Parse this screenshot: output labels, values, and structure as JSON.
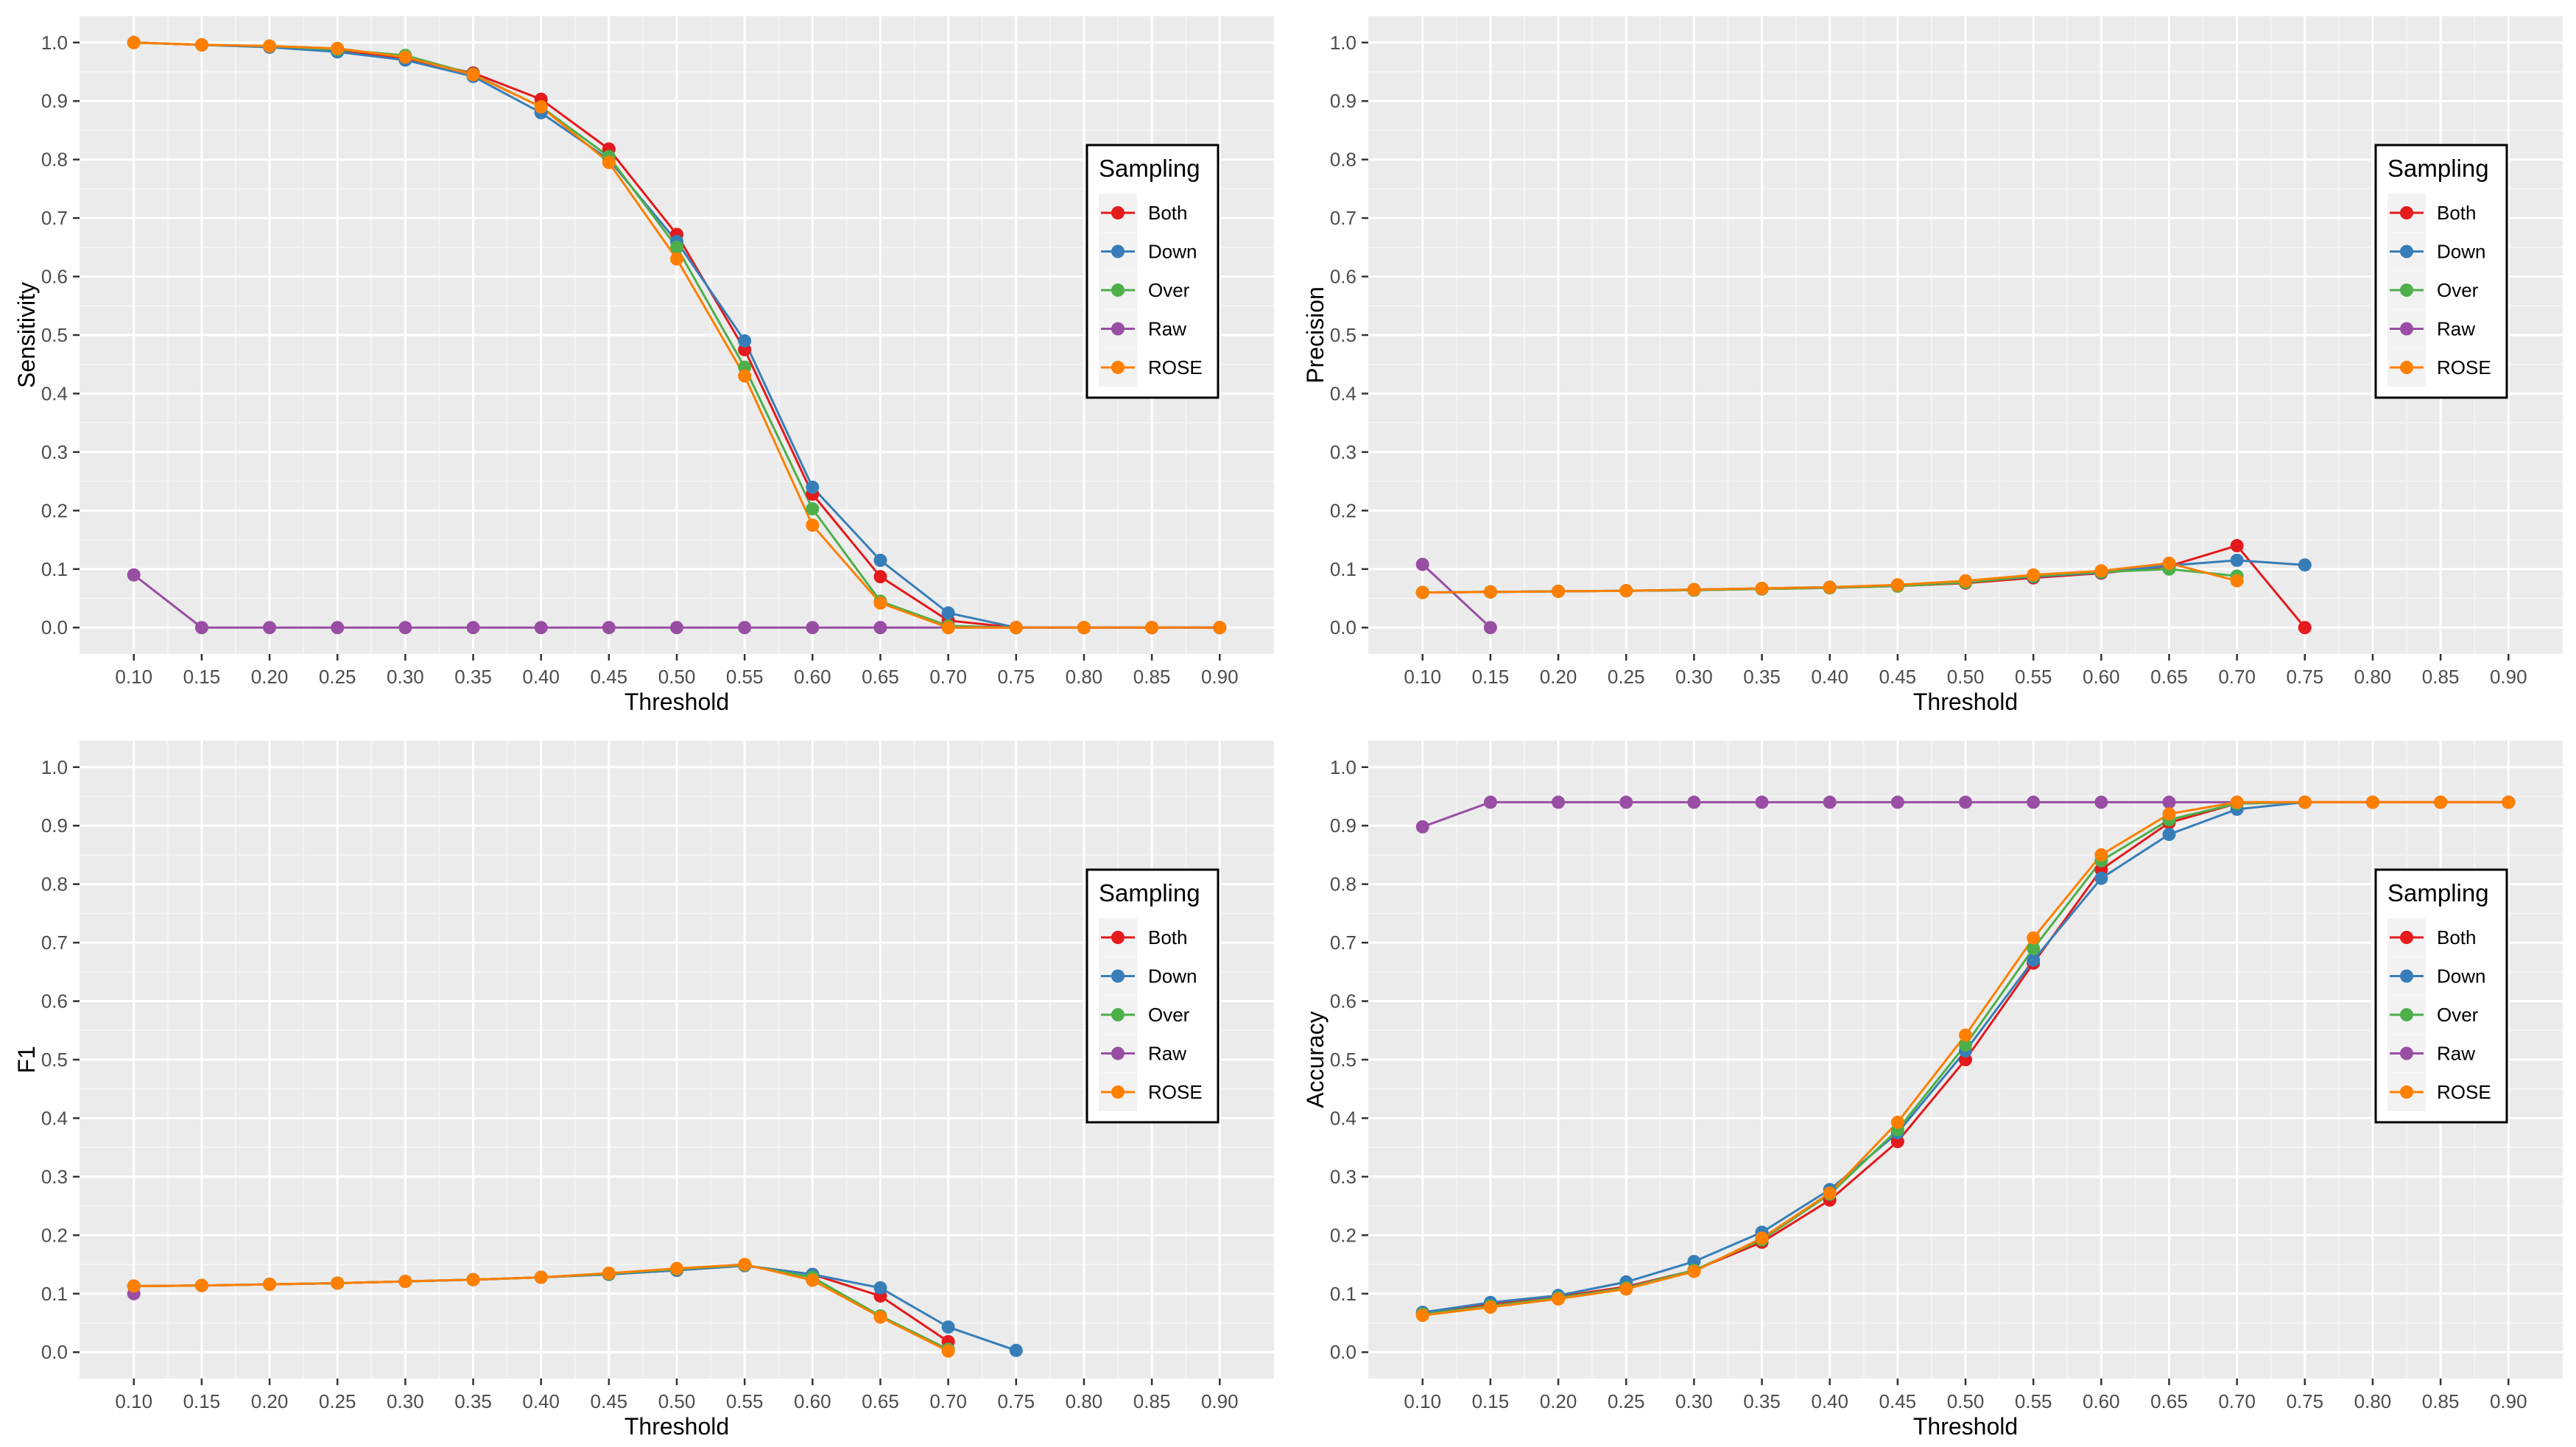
{
  "chart_data": [
    {
      "type": "line",
      "xlabel": "Threshold",
      "ylabel": "Sensitivity",
      "ylim": [
        0,
        1
      ],
      "x_ticks": [
        "0.10",
        "0.15",
        "0.20",
        "0.25",
        "0.30",
        "0.35",
        "0.40",
        "0.45",
        "0.50",
        "0.55",
        "0.60",
        "0.65",
        "0.70",
        "0.75",
        "0.80",
        "0.85",
        "0.90"
      ],
      "y_ticks": [
        "0.0",
        "0.1",
        "0.2",
        "0.3",
        "0.4",
        "0.5",
        "0.6",
        "0.7",
        "0.8",
        "0.9",
        "1.0"
      ],
      "legend": {
        "title": "Sampling",
        "position": "right"
      },
      "series": [
        {
          "name": "Both",
          "color": "#E41A1C",
          "x": [
            0.1,
            0.15,
            0.2,
            0.25,
            0.3,
            0.35,
            0.4,
            0.45,
            0.5,
            0.55,
            0.6,
            0.65,
            0.7,
            0.75,
            0.8,
            0.85,
            0.9
          ],
          "values": [
            1.0,
            0.996,
            0.993,
            0.986,
            0.972,
            0.948,
            0.903,
            0.818,
            0.672,
            0.475,
            0.228,
            0.087,
            0.012,
            0.0,
            0.0,
            0.0,
            0.0
          ]
        },
        {
          "name": "Down",
          "color": "#377EB8",
          "x": [
            0.1,
            0.15,
            0.2,
            0.25,
            0.3,
            0.35,
            0.4,
            0.45,
            0.5,
            0.55,
            0.6,
            0.65,
            0.7,
            0.75
          ],
          "values": [
            1.0,
            0.996,
            0.992,
            0.984,
            0.97,
            0.942,
            0.88,
            0.8,
            0.66,
            0.49,
            0.24,
            0.115,
            0.025,
            0.0
          ]
        },
        {
          "name": "Over",
          "color": "#4DAF4A",
          "x": [
            0.1,
            0.15,
            0.2,
            0.25,
            0.3,
            0.35,
            0.4,
            0.45,
            0.5,
            0.55,
            0.6,
            0.65,
            0.7,
            0.75,
            0.8,
            0.85,
            0.9
          ],
          "values": [
            1.0,
            0.996,
            0.994,
            0.988,
            0.978,
            0.946,
            0.89,
            0.805,
            0.65,
            0.445,
            0.203,
            0.045,
            0.003,
            0.0,
            0.0,
            0.0,
            0.0
          ]
        },
        {
          "name": "Raw",
          "color": "#984EA3",
          "x": [
            0.1,
            0.15,
            0.2,
            0.25,
            0.3,
            0.35,
            0.4,
            0.45,
            0.5,
            0.55,
            0.6,
            0.65,
            0.7,
            0.75,
            0.8,
            0.85,
            0.9
          ],
          "values": [
            0.09,
            0.0,
            0.0,
            0.0,
            0.0,
            0.0,
            0.0,
            0.0,
            0.0,
            0.0,
            0.0,
            0.0,
            0.0,
            0.0,
            0.0,
            0.0,
            0.0
          ]
        },
        {
          "name": "ROSE",
          "color": "#FF7F00",
          "x": [
            0.1,
            0.15,
            0.2,
            0.25,
            0.3,
            0.35,
            0.4,
            0.45,
            0.5,
            0.55,
            0.6,
            0.65,
            0.7,
            0.75,
            0.8,
            0.85,
            0.9
          ],
          "values": [
            1.0,
            0.996,
            0.994,
            0.99,
            0.975,
            0.945,
            0.89,
            0.795,
            0.63,
            0.43,
            0.175,
            0.042,
            0.0,
            0.0,
            0.0,
            0.0,
            0.0
          ]
        }
      ]
    },
    {
      "type": "line",
      "xlabel": "Threshold",
      "ylabel": "Precision",
      "ylim": [
        0,
        1
      ],
      "x_ticks": [
        "0.10",
        "0.15",
        "0.20",
        "0.25",
        "0.30",
        "0.35",
        "0.40",
        "0.45",
        "0.50",
        "0.55",
        "0.60",
        "0.65",
        "0.70",
        "0.75",
        "0.80",
        "0.85",
        "0.90"
      ],
      "y_ticks": [
        "0.0",
        "0.1",
        "0.2",
        "0.3",
        "0.4",
        "0.5",
        "0.6",
        "0.7",
        "0.8",
        "0.9",
        "1.0"
      ],
      "legend": {
        "title": "Sampling",
        "position": "right"
      },
      "series": [
        {
          "name": "Both",
          "color": "#E41A1C",
          "x": [
            0.1,
            0.15,
            0.2,
            0.25,
            0.3,
            0.35,
            0.4,
            0.45,
            0.5,
            0.55,
            0.6,
            0.65,
            0.7,
            0.75
          ],
          "values": [
            0.06,
            0.061,
            0.062,
            0.063,
            0.064,
            0.066,
            0.068,
            0.071,
            0.076,
            0.085,
            0.093,
            0.105,
            0.14,
            0.0
          ]
        },
        {
          "name": "Down",
          "color": "#377EB8",
          "x": [
            0.1,
            0.15,
            0.2,
            0.25,
            0.3,
            0.35,
            0.4,
            0.45,
            0.5,
            0.55,
            0.6,
            0.65,
            0.7,
            0.75
          ],
          "values": [
            0.06,
            0.061,
            0.062,
            0.063,
            0.065,
            0.067,
            0.069,
            0.072,
            0.078,
            0.087,
            0.094,
            0.106,
            0.115,
            0.107
          ]
        },
        {
          "name": "Over",
          "color": "#4DAF4A",
          "x": [
            0.1,
            0.15,
            0.2,
            0.25,
            0.3,
            0.35,
            0.4,
            0.45,
            0.5,
            0.55,
            0.6,
            0.65,
            0.7
          ],
          "values": [
            0.06,
            0.061,
            0.062,
            0.063,
            0.064,
            0.066,
            0.068,
            0.071,
            0.077,
            0.088,
            0.095,
            0.1,
            0.088
          ]
        },
        {
          "name": "Raw",
          "color": "#984EA3",
          "x": [
            0.1,
            0.15
          ],
          "values": [
            0.108,
            0.0
          ]
        },
        {
          "name": "ROSE",
          "color": "#FF7F00",
          "x": [
            0.1,
            0.15,
            0.2,
            0.25,
            0.3,
            0.35,
            0.4,
            0.45,
            0.5,
            0.55,
            0.6,
            0.65,
            0.7
          ],
          "values": [
            0.06,
            0.061,
            0.062,
            0.063,
            0.065,
            0.067,
            0.069,
            0.073,
            0.08,
            0.09,
            0.097,
            0.11,
            0.08
          ]
        }
      ]
    },
    {
      "type": "line",
      "xlabel": "Threshold",
      "ylabel": "F1",
      "ylim": [
        0,
        1
      ],
      "x_ticks": [
        "0.10",
        "0.15",
        "0.20",
        "0.25",
        "0.30",
        "0.35",
        "0.40",
        "0.45",
        "0.50",
        "0.55",
        "0.60",
        "0.65",
        "0.70",
        "0.75",
        "0.80",
        "0.85",
        "0.90"
      ],
      "y_ticks": [
        "0.0",
        "0.1",
        "0.2",
        "0.3",
        "0.4",
        "0.5",
        "0.6",
        "0.7",
        "0.8",
        "0.9",
        "1.0"
      ],
      "legend": {
        "title": "Sampling",
        "position": "right"
      },
      "series": [
        {
          "name": "Both",
          "color": "#E41A1C",
          "x": [
            0.1,
            0.15,
            0.2,
            0.25,
            0.3,
            0.35,
            0.4,
            0.45,
            0.5,
            0.55,
            0.6,
            0.65,
            0.7
          ],
          "values": [
            0.113,
            0.114,
            0.116,
            0.118,
            0.121,
            0.124,
            0.128,
            0.133,
            0.14,
            0.148,
            0.133,
            0.096,
            0.018
          ]
        },
        {
          "name": "Down",
          "color": "#377EB8",
          "x": [
            0.1,
            0.15,
            0.2,
            0.25,
            0.3,
            0.35,
            0.4,
            0.45,
            0.5,
            0.55,
            0.6,
            0.65,
            0.7,
            0.75
          ],
          "values": [
            0.113,
            0.114,
            0.116,
            0.118,
            0.121,
            0.124,
            0.128,
            0.133,
            0.14,
            0.148,
            0.133,
            0.11,
            0.043,
            0.003
          ]
        },
        {
          "name": "Over",
          "color": "#4DAF4A",
          "x": [
            0.1,
            0.15,
            0.2,
            0.25,
            0.3,
            0.35,
            0.4,
            0.45,
            0.5,
            0.55,
            0.6,
            0.65,
            0.7
          ],
          "values": [
            0.113,
            0.114,
            0.116,
            0.118,
            0.121,
            0.124,
            0.128,
            0.134,
            0.142,
            0.149,
            0.128,
            0.062,
            0.005
          ]
        },
        {
          "name": "Raw",
          "color": "#984EA3",
          "x": [
            0.1
          ],
          "values": [
            0.1
          ]
        },
        {
          "name": "ROSE",
          "color": "#FF7F00",
          "x": [
            0.1,
            0.15,
            0.2,
            0.25,
            0.3,
            0.35,
            0.4,
            0.45,
            0.5,
            0.55,
            0.6,
            0.65,
            0.7
          ],
          "values": [
            0.113,
            0.114,
            0.116,
            0.118,
            0.121,
            0.124,
            0.128,
            0.135,
            0.143,
            0.15,
            0.123,
            0.06,
            0.002
          ]
        }
      ]
    },
    {
      "type": "line",
      "xlabel": "Threshold",
      "ylabel": "Accuracy",
      "ylim": [
        0,
        1
      ],
      "x_ticks": [
        "0.10",
        "0.15",
        "0.20",
        "0.25",
        "0.30",
        "0.35",
        "0.40",
        "0.45",
        "0.50",
        "0.55",
        "0.60",
        "0.65",
        "0.70",
        "0.75",
        "0.80",
        "0.85",
        "0.90"
      ],
      "y_ticks": [
        "0.0",
        "0.1",
        "0.2",
        "0.3",
        "0.4",
        "0.5",
        "0.6",
        "0.7",
        "0.8",
        "0.9",
        "1.0"
      ],
      "legend": {
        "title": "Sampling",
        "position": "right"
      },
      "series": [
        {
          "name": "Both",
          "color": "#E41A1C",
          "x": [
            0.1,
            0.15,
            0.2,
            0.25,
            0.3,
            0.35,
            0.4,
            0.45,
            0.5,
            0.55,
            0.6,
            0.65,
            0.7,
            0.75,
            0.8,
            0.85,
            0.9
          ],
          "values": [
            0.068,
            0.082,
            0.095,
            0.112,
            0.14,
            0.188,
            0.26,
            0.36,
            0.5,
            0.665,
            0.825,
            0.905,
            0.938,
            0.94,
            0.94,
            0.94,
            0.94
          ]
        },
        {
          "name": "Down",
          "color": "#377EB8",
          "x": [
            0.1,
            0.15,
            0.2,
            0.25,
            0.3,
            0.35,
            0.4,
            0.45,
            0.5,
            0.55,
            0.6,
            0.65,
            0.7,
            0.75
          ],
          "values": [
            0.068,
            0.085,
            0.097,
            0.12,
            0.155,
            0.205,
            0.278,
            0.375,
            0.515,
            0.67,
            0.81,
            0.885,
            0.928,
            0.94
          ]
        },
        {
          "name": "Over",
          "color": "#4DAF4A",
          "x": [
            0.1,
            0.15,
            0.2,
            0.25,
            0.3,
            0.35,
            0.4,
            0.45,
            0.5,
            0.55,
            0.6,
            0.65,
            0.7,
            0.75,
            0.8,
            0.85,
            0.9
          ],
          "values": [
            0.065,
            0.079,
            0.093,
            0.11,
            0.14,
            0.192,
            0.27,
            0.38,
            0.525,
            0.69,
            0.84,
            0.91,
            0.938,
            0.94,
            0.94,
            0.94,
            0.94
          ]
        },
        {
          "name": "Raw",
          "color": "#984EA3",
          "x": [
            0.1,
            0.15,
            0.2,
            0.25,
            0.3,
            0.35,
            0.4,
            0.45,
            0.5,
            0.55,
            0.6,
            0.65,
            0.7,
            0.75,
            0.8,
            0.85,
            0.9
          ],
          "values": [
            0.898,
            0.94,
            0.94,
            0.94,
            0.94,
            0.94,
            0.94,
            0.94,
            0.94,
            0.94,
            0.94,
            0.94,
            0.94,
            0.94,
            0.94,
            0.94,
            0.94
          ]
        },
        {
          "name": "ROSE",
          "color": "#FF7F00",
          "x": [
            0.1,
            0.15,
            0.2,
            0.25,
            0.3,
            0.35,
            0.4,
            0.45,
            0.5,
            0.55,
            0.6,
            0.65,
            0.7,
            0.75,
            0.8,
            0.85,
            0.9
          ],
          "values": [
            0.063,
            0.077,
            0.091,
            0.108,
            0.138,
            0.195,
            0.272,
            0.393,
            0.542,
            0.708,
            0.85,
            0.92,
            0.94,
            0.94,
            0.94,
            0.94,
            0.94
          ]
        }
      ]
    }
  ]
}
